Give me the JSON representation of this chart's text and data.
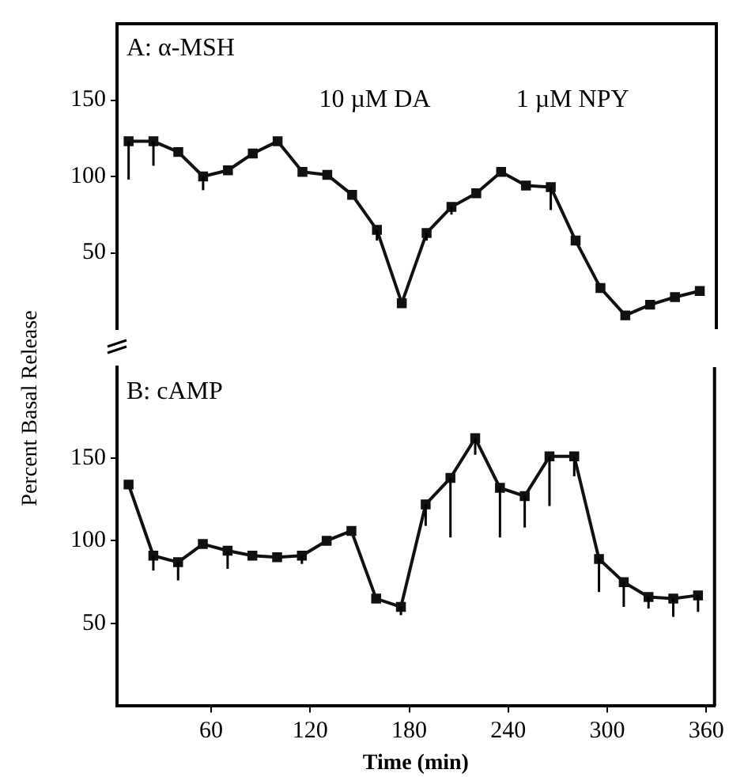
{
  "chart_data": [
    {
      "type": "line",
      "title": "A: α-MSH",
      "ylabel": "Percent Basal Release",
      "x": [
        10,
        25,
        40,
        55,
        70,
        85,
        100,
        115,
        130,
        145,
        160,
        175,
        190,
        205,
        220,
        235,
        250,
        265,
        280,
        295,
        310,
        325,
        340,
        355
      ],
      "series": [
        {
          "color": "#111111",
          "values": [
            123,
            123,
            116,
            100,
            104,
            115,
            123,
            103,
            101,
            88,
            65,
            17,
            63,
            80,
            89,
            103,
            94,
            93,
            58,
            27,
            9,
            16,
            21,
            25
          ],
          "errors": [
            [
              98,
              123
            ],
            [
              107,
              123
            ],
            null,
            [
              91,
              100
            ],
            null,
            null,
            null,
            null,
            null,
            null,
            [
              58,
              65
            ],
            null,
            [
              58,
              63
            ],
            [
              75,
              80
            ],
            null,
            null,
            null,
            [
              78,
              93
            ],
            null,
            null,
            null,
            null,
            null,
            null
          ]
        }
      ],
      "annotations": [
        "10 µM DA",
        "1 µM NPY"
      ],
      "xlim": [
        3,
        365
      ],
      "ylim": [
        0,
        200
      ],
      "yticks": [
        50,
        100,
        150
      ],
      "tick_labels": "y",
      "marker": "square",
      "line_style": "solid",
      "grid": false,
      "legend": false
    },
    {
      "type": "line",
      "title": "B: cAMP",
      "xlabel": "Time (min)",
      "x": [
        10,
        25,
        40,
        55,
        70,
        85,
        100,
        115,
        130,
        145,
        160,
        175,
        190,
        205,
        220,
        235,
        250,
        265,
        280,
        295,
        310,
        325,
        340,
        355
      ],
      "series": [
        {
          "color": "#111111",
          "values": [
            134,
            91,
            87,
            98,
            94,
            91,
            90,
            91,
            100,
            106,
            65,
            60,
            122,
            138,
            162,
            132,
            127,
            151,
            151,
            89,
            75,
            66,
            65,
            67
          ],
          "errors": [
            null,
            [
              82,
              91
            ],
            [
              76,
              87
            ],
            null,
            [
              83,
              94
            ],
            null,
            null,
            [
              86,
              91
            ],
            null,
            null,
            null,
            [
              55,
              60
            ],
            [
              109,
              122
            ],
            [
              102,
              138
            ],
            [
              152,
              162
            ],
            [
              102,
              132
            ],
            [
              108,
              127
            ],
            [
              121,
              151
            ],
            [
              139,
              151
            ],
            [
              69,
              89
            ],
            [
              60,
              75
            ],
            [
              59,
              66
            ],
            [
              54,
              65
            ],
            [
              57,
              67
            ]
          ]
        }
      ],
      "xlim": [
        3,
        365
      ],
      "xticks": [
        60,
        120,
        180,
        240,
        300,
        360
      ],
      "ylim": [
        0,
        205
      ],
      "yticks": [
        50,
        100,
        150
      ],
      "marker": "square",
      "line_style": "solid",
      "grid": false,
      "legend": false
    }
  ]
}
